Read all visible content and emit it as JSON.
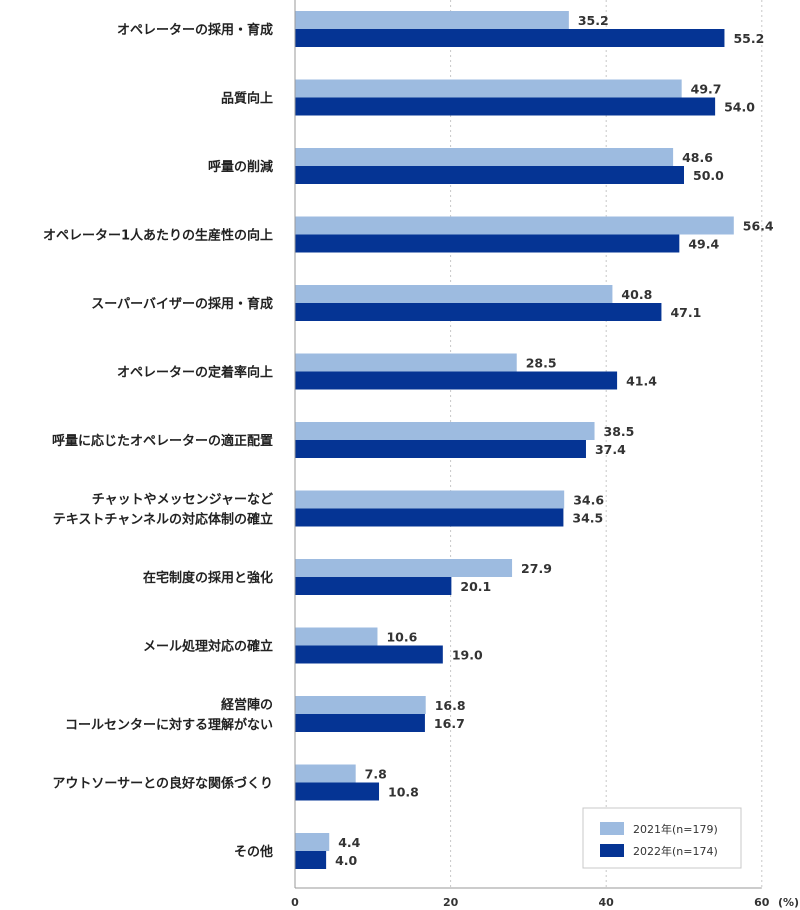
{
  "chart_data": {
    "type": "bar",
    "orientation": "horizontal",
    "unit": "(%)",
    "xlim": [
      0,
      60
    ],
    "xticks": [
      "0",
      "20",
      "40",
      "60"
    ],
    "grid": true,
    "legend_position": "bottom-right",
    "categories": [
      [
        "オペレーターの採用・育成"
      ],
      [
        "品質向上"
      ],
      [
        "呼量の削減"
      ],
      [
        "オペレーター1人あたりの生産性の向上"
      ],
      [
        "スーパーバイザーの採用・育成"
      ],
      [
        "オペレーターの定着率向上"
      ],
      [
        "呼量に応じたオペレーターの適正配置"
      ],
      [
        "チャットやメッセンジャーなど",
        "テキストチャンネルの対応体制の確立"
      ],
      [
        "在宅制度の採用と強化"
      ],
      [
        "メール処理対応の確立"
      ],
      [
        "経営陣の",
        "コールセンターに対する理解がない"
      ],
      [
        "アウトソーサーとの良好な関係づくり"
      ],
      [
        "その他"
      ]
    ],
    "series": [
      {
        "name": "2021年(n=179)",
        "color": "#9dbbe0",
        "values": [
          35.2,
          49.7,
          48.6,
          56.4,
          40.8,
          28.5,
          38.5,
          34.6,
          27.9,
          10.6,
          16.8,
          7.8,
          4.4
        ]
      },
      {
        "name": "2022年(n=174)",
        "color": "#053494",
        "values": [
          55.2,
          54.0,
          50.0,
          49.4,
          47.1,
          41.4,
          37.4,
          34.5,
          20.1,
          19.0,
          16.7,
          10.8,
          4.0
        ]
      }
    ]
  }
}
